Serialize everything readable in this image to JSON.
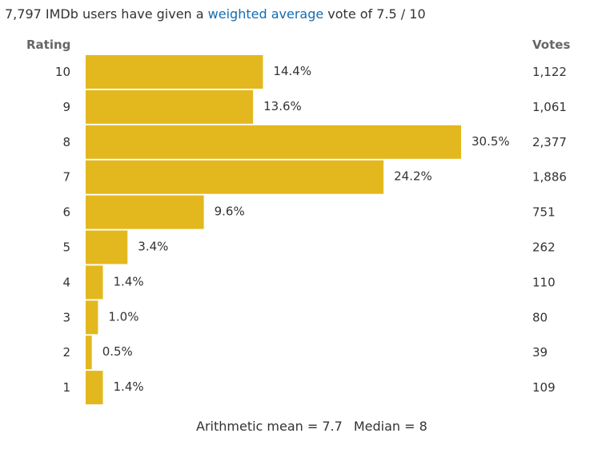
{
  "summary": {
    "text_before": "7,797 IMDb users have given a ",
    "link_text": "weighted average",
    "text_after": " vote of 7.5 / 10"
  },
  "headers": {
    "rating": "Rating",
    "votes": "Votes"
  },
  "chart_data": {
    "type": "bar",
    "orientation": "horizontal",
    "categories": [
      "10",
      "9",
      "8",
      "7",
      "6",
      "5",
      "4",
      "3",
      "2",
      "1"
    ],
    "series": [
      {
        "values": [
          14.4,
          13.6,
          30.5,
          24.2,
          9.6,
          3.4,
          1.4,
          1.0,
          0.5,
          1.4
        ]
      }
    ],
    "percent_labels": [
      "14.4%",
      "13.6%",
      "30.5%",
      "24.2%",
      "9.6%",
      "3.4%",
      "1.4%",
      "1.0%",
      "0.5%",
      "1.4%"
    ],
    "votes": [
      "1,122",
      "1,061",
      "2,377",
      "1,886",
      "751",
      "262",
      "110",
      "80",
      "39",
      "109"
    ],
    "bar_color": "#e3b81f",
    "max_value": 30.5
  },
  "footer": {
    "mean": "Arithmetic mean = 7.7",
    "median": "Median = 8"
  }
}
